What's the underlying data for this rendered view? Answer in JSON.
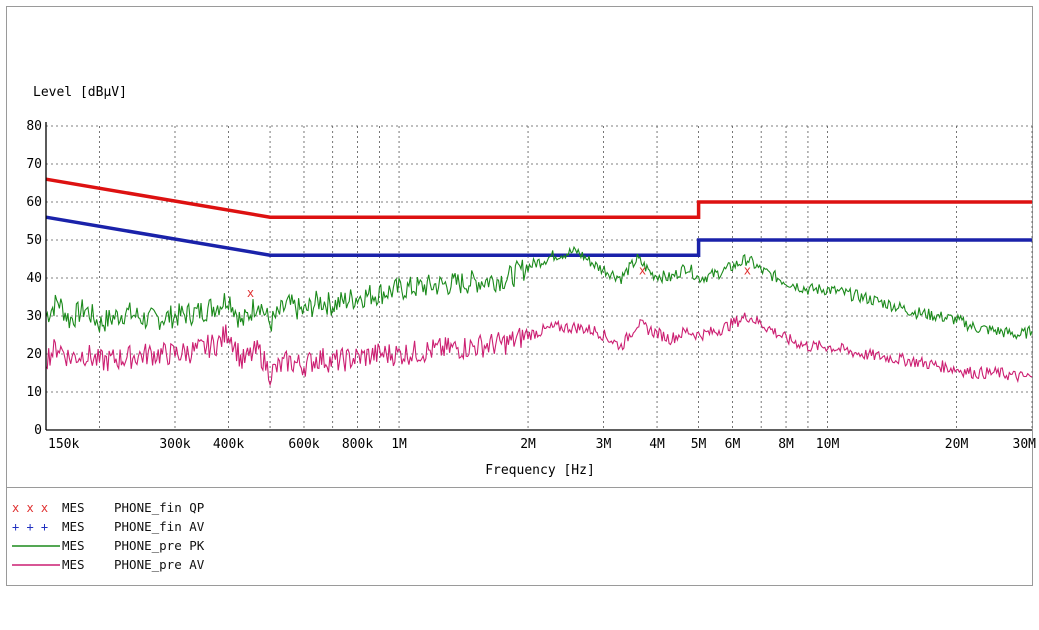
{
  "chart_data": {
    "type": "line",
    "ylabel": "Level [dBµV]",
    "xlabel": "Frequency [Hz]",
    "x_scale": "log",
    "xlim_hz": [
      150000,
      30000000
    ],
    "ylim": [
      0,
      80
    ],
    "y_ticks": [
      0,
      10,
      20,
      30,
      40,
      50,
      60,
      70,
      80
    ],
    "x_ticks": [
      {
        "value": 150000,
        "label": "150k"
      },
      {
        "value": 300000,
        "label": "300k"
      },
      {
        "value": 400000,
        "label": "400k"
      },
      {
        "value": 600000,
        "label": "600k"
      },
      {
        "value": 800000,
        "label": "800k"
      },
      {
        "value": 1000000,
        "label": "1M"
      },
      {
        "value": 2000000,
        "label": "2M"
      },
      {
        "value": 3000000,
        "label": "3M"
      },
      {
        "value": 4000000,
        "label": "4M"
      },
      {
        "value": 5000000,
        "label": "5M"
      },
      {
        "value": 6000000,
        "label": "6M"
      },
      {
        "value": 8000000,
        "label": "8M"
      },
      {
        "value": 10000000,
        "label": "10M"
      },
      {
        "value": 20000000,
        "label": "20M"
      },
      {
        "value": 30000000,
        "label": "30M"
      }
    ],
    "grid": true,
    "limit_lines": [
      {
        "color": "#dd1111",
        "points": [
          [
            150000,
            66
          ],
          [
            500000,
            56
          ],
          [
            5000000,
            56
          ],
          [
            5000000,
            60
          ],
          [
            30000000,
            60
          ]
        ]
      },
      {
        "color": "#1a22aa",
        "points": [
          [
            150000,
            56
          ],
          [
            500000,
            46
          ],
          [
            5000000,
            46
          ],
          [
            5000000,
            50
          ],
          [
            30000000,
            50
          ]
        ]
      }
    ],
    "series": [
      {
        "name": "PHONE_pre PK",
        "color": "#1b8a1b",
        "points": [
          [
            150000,
            30
          ],
          [
            160000,
            34
          ],
          [
            170000,
            29
          ],
          [
            185000,
            32
          ],
          [
            200000,
            28
          ],
          [
            230000,
            31
          ],
          [
            260000,
            29
          ],
          [
            300000,
            30
          ],
          [
            340000,
            31
          ],
          [
            380000,
            33
          ],
          [
            400000,
            35
          ],
          [
            430000,
            28
          ],
          [
            470000,
            34
          ],
          [
            500000,
            28
          ],
          [
            550000,
            33
          ],
          [
            600000,
            31
          ],
          [
            650000,
            34
          ],
          [
            700000,
            33
          ],
          [
            800000,
            35
          ],
          [
            900000,
            36
          ],
          [
            1000000,
            37
          ],
          [
            1200000,
            38
          ],
          [
            1500000,
            39
          ],
          [
            1800000,
            40
          ],
          [
            2000000,
            43
          ],
          [
            2300000,
            46
          ],
          [
            2600000,
            47
          ],
          [
            2900000,
            43
          ],
          [
            3300000,
            40
          ],
          [
            3600000,
            45
          ],
          [
            3900000,
            41
          ],
          [
            4300000,
            40
          ],
          [
            4700000,
            43
          ],
          [
            5000000,
            40
          ],
          [
            5500000,
            41
          ],
          [
            6000000,
            43
          ],
          [
            6500000,
            45
          ],
          [
            7000000,
            42
          ],
          [
            8000000,
            39
          ],
          [
            9000000,
            37
          ],
          [
            10000000,
            37
          ],
          [
            12000000,
            35
          ],
          [
            14000000,
            33
          ],
          [
            16000000,
            31
          ],
          [
            18000000,
            30
          ],
          [
            20000000,
            29
          ],
          [
            22000000,
            27
          ],
          [
            25000000,
            26
          ],
          [
            28000000,
            25
          ],
          [
            30000000,
            26
          ]
        ]
      },
      {
        "name": "PHONE_pre AV",
        "color": "#cc1f72",
        "points": [
          [
            150000,
            19
          ],
          [
            160000,
            22
          ],
          [
            170000,
            19
          ],
          [
            185000,
            20
          ],
          [
            200000,
            18
          ],
          [
            230000,
            19
          ],
          [
            260000,
            20
          ],
          [
            300000,
            20
          ],
          [
            340000,
            21
          ],
          [
            380000,
            23
          ],
          [
            400000,
            26
          ],
          [
            430000,
            18
          ],
          [
            470000,
            21
          ],
          [
            500000,
            15
          ],
          [
            550000,
            18
          ],
          [
            600000,
            17
          ],
          [
            650000,
            19
          ],
          [
            700000,
            18
          ],
          [
            800000,
            19
          ],
          [
            900000,
            20
          ],
          [
            1000000,
            20
          ],
          [
            1200000,
            21
          ],
          [
            1500000,
            22
          ],
          [
            1800000,
            23
          ],
          [
            2000000,
            25
          ],
          [
            2300000,
            27
          ],
          [
            2600000,
            27
          ],
          [
            2900000,
            26
          ],
          [
            3300000,
            22
          ],
          [
            3600000,
            28
          ],
          [
            3900000,
            26
          ],
          [
            4300000,
            24
          ],
          [
            4700000,
            26
          ],
          [
            5000000,
            25
          ],
          [
            5500000,
            26
          ],
          [
            6000000,
            28
          ],
          [
            6500000,
            30
          ],
          [
            7000000,
            28
          ],
          [
            8000000,
            24
          ],
          [
            9000000,
            22
          ],
          [
            10000000,
            22
          ],
          [
            12000000,
            20
          ],
          [
            14000000,
            19
          ],
          [
            16000000,
            18
          ],
          [
            18000000,
            17
          ],
          [
            20000000,
            16
          ],
          [
            22000000,
            15
          ],
          [
            25000000,
            15
          ],
          [
            28000000,
            14
          ],
          [
            30000000,
            14
          ]
        ]
      }
    ],
    "markers": [
      {
        "name": "PHONE_fin QP",
        "color": "#e03030",
        "symbol": "x",
        "points": [
          [
            450000,
            36
          ],
          [
            3700000,
            42
          ],
          [
            6500000,
            42
          ]
        ]
      }
    ],
    "legend": {
      "placement": "bottom-left",
      "entries": [
        {
          "symbol": "x x x",
          "color": "#e03030",
          "label": "MES",
          "name": "PHONE_fin QP"
        },
        {
          "symbol": "+ + +",
          "color": "#2030c0",
          "label": "MES",
          "name": "PHONE_fin AV"
        },
        {
          "symbol": "line",
          "color": "#1b8a1b",
          "label": "MES",
          "name": "PHONE_pre PK"
        },
        {
          "symbol": "line",
          "color": "#cc1f72",
          "label": "MES",
          "name": "PHONE_pre AV"
        }
      ]
    }
  }
}
